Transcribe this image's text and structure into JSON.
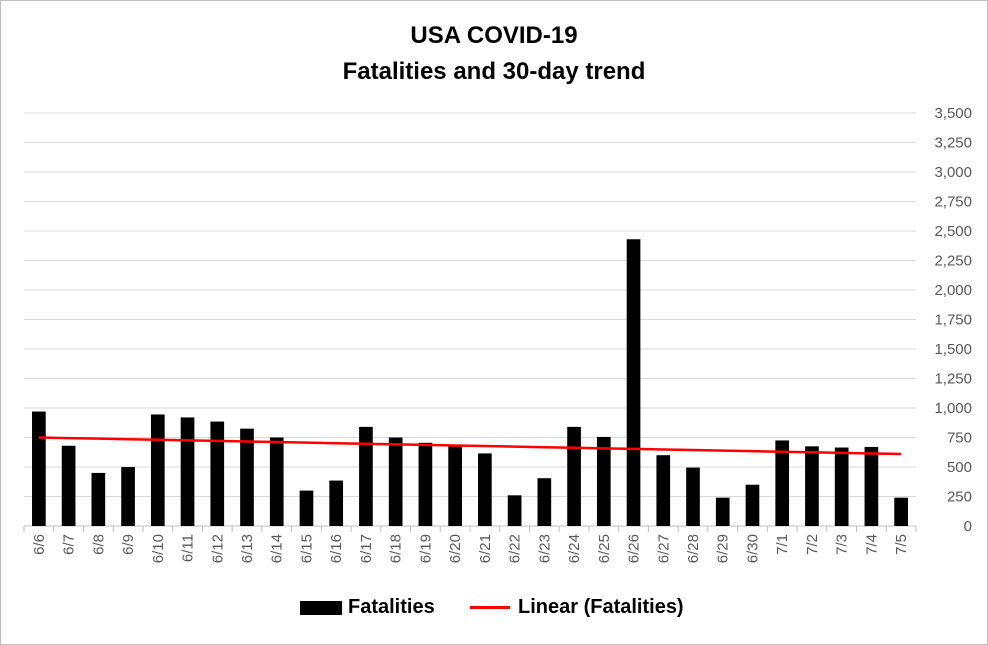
{
  "chart_data": {
    "type": "bar",
    "title": "USA COVID-19",
    "subtitle": "Fatalities and 30-day trend",
    "categories": [
      "6/6",
      "6/7",
      "6/8",
      "6/9",
      "6/10",
      "6/11",
      "6/12",
      "6/13",
      "6/14",
      "6/15",
      "6/16",
      "6/17",
      "6/18",
      "6/19",
      "6/20",
      "6/21",
      "6/22",
      "6/23",
      "6/24",
      "6/25",
      "6/26",
      "6/27",
      "6/28",
      "6/29",
      "6/30",
      "7/1",
      "7/2",
      "7/3",
      "7/4",
      "7/5"
    ],
    "series": [
      {
        "name": "Fatalities",
        "color": "#000000",
        "values": [
          970,
          680,
          450,
          500,
          945,
          920,
          885,
          825,
          750,
          300,
          385,
          840,
          750,
          705,
          680,
          615,
          260,
          405,
          840,
          755,
          2430,
          600,
          495,
          240,
          350,
          725,
          675,
          665,
          670,
          240
        ]
      },
      {
        "name": "Linear (Fatalities)",
        "type": "line",
        "color": "#ff0000",
        "values": [
          750,
          745.2,
          740.3,
          735.5,
          730.7,
          725.9,
          721.0,
          716.2,
          711.4,
          706.6,
          701.7,
          696.9,
          692.1,
          687.2,
          682.4,
          677.6,
          672.8,
          667.9,
          663.1,
          658.3,
          653.4,
          648.6,
          643.8,
          639.0,
          634.1,
          629.3,
          624.5,
          619.7,
          614.8,
          610
        ]
      }
    ],
    "ylim": [
      0,
      3500
    ],
    "yticks": [
      "0",
      "250",
      "500",
      "750",
      "1,000",
      "1,250",
      "1,500",
      "1,750",
      "2,000",
      "2,250",
      "2,500",
      "2,750",
      "3,000",
      "3,250",
      "3,500"
    ],
    "ytick_values": [
      0,
      250,
      500,
      750,
      1000,
      1250,
      1500,
      1750,
      2000,
      2250,
      2500,
      2750,
      3000,
      3250,
      3500
    ],
    "y_axis_side": "right",
    "grid": true,
    "legend_position": "bottom"
  }
}
